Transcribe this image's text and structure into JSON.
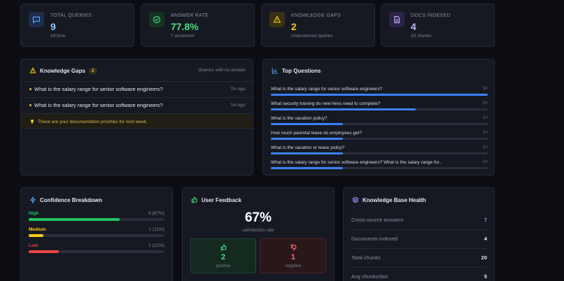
{
  "stats": [
    {
      "label": "TOTAL QUERIES",
      "value": "9",
      "sub": "All time",
      "color": "#93c5fd",
      "icon_bg": "#1d2d4a",
      "icon": "chat-icon"
    },
    {
      "label": "ANSWER RATE",
      "value": "77.8%",
      "sub": "7 answered",
      "color": "#4ade80",
      "icon_bg": "#163424",
      "icon": "check-circle-icon"
    },
    {
      "label": "KNOWLEDGE GAPS",
      "value": "2",
      "sub": "Unanswered queries",
      "color": "#facc15",
      "icon_bg": "#3a3015",
      "icon": "warning-icon"
    },
    {
      "label": "DOCS INDEXED",
      "value": "4",
      "sub": "20 chunks",
      "color": "#c4b5fd",
      "icon_bg": "#2c2346",
      "icon": "document-icon"
    }
  ],
  "gaps": {
    "title": "Knowledge Gaps",
    "count": "2",
    "subtitle": "Queries with no answer",
    "items": [
      {
        "question": "What is the salary range for senior software engineers?",
        "time": "7m ago"
      },
      {
        "question": "What is the salary range for senior software engineers?",
        "time": "1m ago"
      }
    ],
    "note": "These are your documentation priorities for next week."
  },
  "top_questions": {
    "title": "Top Questions",
    "items": [
      {
        "question": "What is the salary range for senior software engineers?",
        "count": "3×",
        "value": 3
      },
      {
        "question": "What security training do new hires need to complete?",
        "count": "2×",
        "value": 2
      },
      {
        "question": "What is the vacation policy?",
        "count": "1×",
        "value": 1
      },
      {
        "question": "How much parental leave do employees get?",
        "count": "1×",
        "value": 1
      },
      {
        "question": "What is the vacation or leave policy?",
        "count": "1×",
        "value": 1
      },
      {
        "question": "What is the salary range for senior software engineers? What is the salary range for...",
        "count": "1×",
        "value": 1
      }
    ],
    "max": 3
  },
  "confidence": {
    "title": "Confidence Breakdown",
    "items": [
      {
        "name": "High",
        "value": "6 (67%)",
        "fraction": 0.67,
        "color": "#22c55e"
      },
      {
        "name": "Medium",
        "value": "1 (11%)",
        "fraction": 0.11,
        "color": "#facc15"
      },
      {
        "name": "Low",
        "value": "2 (22%)",
        "fraction": 0.22,
        "color": "#ef4444"
      }
    ]
  },
  "feedback": {
    "title": "User Feedback",
    "percent": "67%",
    "percent_label": "satisfaction rate",
    "positive": "2",
    "positive_label": "positive",
    "negative": "1",
    "negative_label": "negative"
  },
  "health": {
    "title": "Knowledge Base Health",
    "rows": [
      {
        "key": "Cross-source answers",
        "value": "7",
        "color": "#a78bfa"
      },
      {
        "key": "Documents indexed",
        "value": "4",
        "color": "#e6e8ee"
      },
      {
        "key": "Total chunks",
        "value": "20",
        "color": "#e6e8ee"
      },
      {
        "key": "Avg chunks/doc",
        "value": "5",
        "color": "#e6e8ee"
      }
    ]
  }
}
